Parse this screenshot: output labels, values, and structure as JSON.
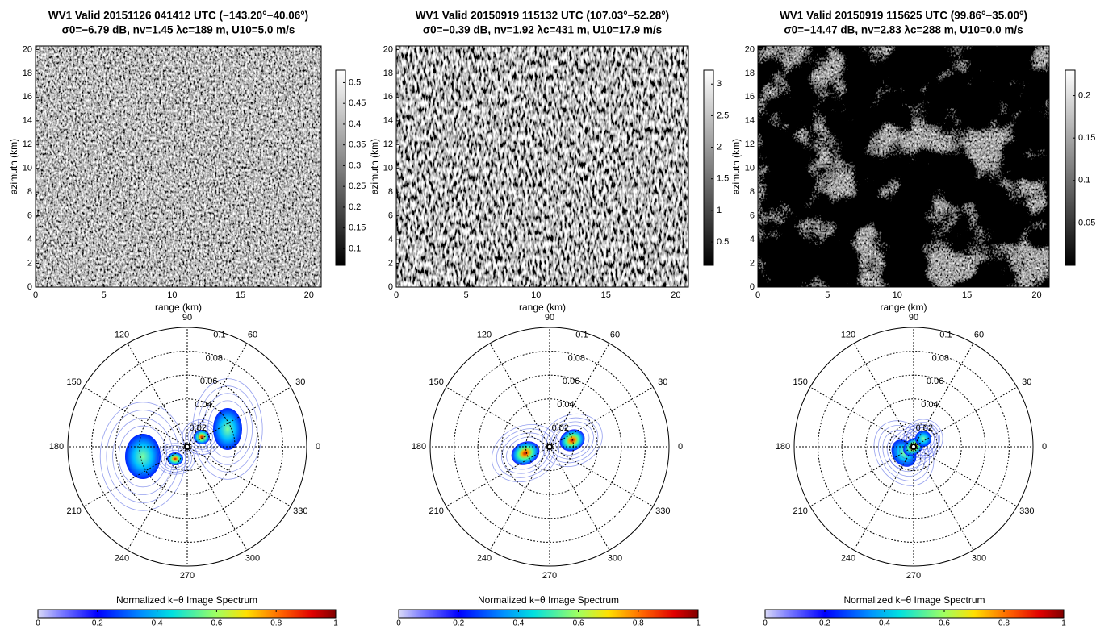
{
  "chart_data": [
    {
      "type": "sar-panel",
      "title": "WV1 Valid 20151126 041412 UTC (−143.20°−40.06°)",
      "subtitle": "σ0=−6.79 dB, nv=1.45 λc=189 m, U10=5.0 m/s",
      "xlabel": "range (km)",
      "ylabel": "azimuth (km)",
      "xlim": [
        0,
        20.9
      ],
      "ylim": [
        0,
        20.3
      ],
      "xticks": [
        0,
        5,
        10,
        15,
        20
      ],
      "yticks": [
        0,
        2,
        4,
        6,
        8,
        10,
        12,
        14,
        16,
        18,
        20
      ],
      "colorbar": {
        "lim": [
          0.06,
          0.53
        ],
        "ticks": [
          0.1,
          0.15,
          0.2,
          0.25,
          0.3,
          0.35,
          0.4,
          0.45,
          0.5
        ]
      },
      "polar": {
        "rlim": [
          0,
          0.1
        ],
        "rticks": [
          0.02,
          0.04,
          0.06,
          0.08,
          0.1
        ],
        "thetaticks": [
          0,
          30,
          60,
          90,
          120,
          150,
          180,
          210,
          240,
          270,
          300,
          330
        ]
      },
      "spectrum_colorbar": {
        "title": "Normalized k−θ Image Spectrum",
        "lim": [
          0,
          1
        ],
        "ticks": [
          0,
          0.2,
          0.4,
          0.6,
          0.8,
          1
        ]
      }
    },
    {
      "type": "sar-panel",
      "title": "WV1 Valid 20150919 115132 UTC (107.03°−52.28°)",
      "subtitle": "σ0=−0.39 dB, nv=1.92 λc=431 m, U10=17.9 m/s",
      "xlabel": "range (km)",
      "ylabel": "azimuth (km)",
      "xlim": [
        0,
        20.9
      ],
      "ylim": [
        0,
        20.3
      ],
      "xticks": [
        0,
        5,
        10,
        15,
        20
      ],
      "yticks": [
        0,
        2,
        4,
        6,
        8,
        10,
        12,
        14,
        16,
        18,
        20
      ],
      "colorbar": {
        "lim": [
          0.13,
          3.22
        ],
        "ticks": [
          0.5,
          1,
          1.5,
          2,
          2.5,
          3
        ]
      },
      "polar": {
        "rlim": [
          0,
          0.1
        ],
        "rticks": [
          0.02,
          0.04,
          0.06,
          0.08,
          0.1
        ],
        "thetaticks": [
          0,
          30,
          60,
          90,
          120,
          150,
          180,
          210,
          240,
          270,
          300,
          330
        ]
      },
      "spectrum_colorbar": {
        "title": "Normalized k−θ Image Spectrum",
        "lim": [
          0,
          1
        ],
        "ticks": [
          0,
          0.2,
          0.4,
          0.6,
          0.8,
          1
        ]
      }
    },
    {
      "type": "sar-panel",
      "title": "WV1 Valid 20150919 115625 UTC (99.86°−35.00°)",
      "subtitle": "σ0=−14.47 dB, nv=2.83 λc=288 m, U10=0.0 m/s",
      "xlabel": "range (km)",
      "ylabel": "azimuth (km)",
      "xlim": [
        0,
        20.9
      ],
      "ylim": [
        0,
        20.3
      ],
      "xticks": [
        0,
        5,
        10,
        15,
        20
      ],
      "yticks": [
        0,
        2,
        4,
        6,
        8,
        10,
        12,
        14,
        16,
        18,
        20
      ],
      "colorbar": {
        "lim": [
          0,
          0.23
        ],
        "ticks": [
          0.05,
          0.1,
          0.15,
          0.2
        ]
      },
      "polar": {
        "rlim": [
          0,
          0.1
        ],
        "rticks": [
          0.02,
          0.04,
          0.06,
          0.08,
          0.1
        ],
        "thetaticks": [
          0,
          30,
          60,
          90,
          120,
          150,
          180,
          210,
          240,
          270,
          300,
          330
        ]
      },
      "spectrum_colorbar": {
        "title": "Normalized k−θ Image Spectrum",
        "lim": [
          0,
          1
        ],
        "ticks": [
          0,
          0.2,
          0.4,
          0.6,
          0.8,
          1
        ]
      }
    }
  ]
}
